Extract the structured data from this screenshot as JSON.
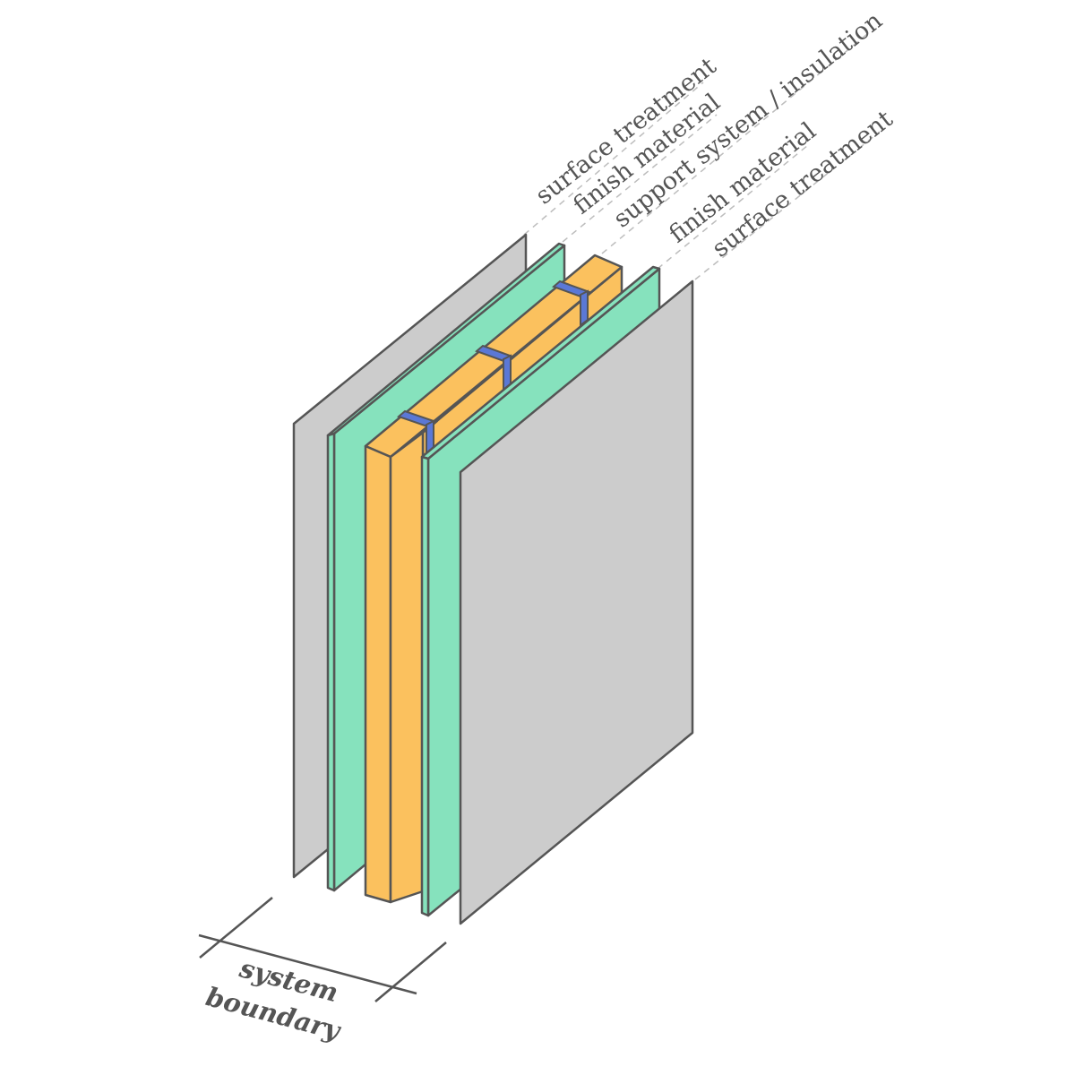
{
  "layers": [
    {
      "label": "surface treatment",
      "material": "gray",
      "color": "#cccccc"
    },
    {
      "label": "finish material",
      "material": "green",
      "color": "#86e2bd"
    },
    {
      "label": "support system / insulation",
      "material": "orange",
      "color": "#fbc15e"
    },
    {
      "label": "finish material",
      "material": "green",
      "color": "#86e2bd"
    },
    {
      "label": "surface treatment",
      "material": "gray",
      "color": "#cccccc"
    }
  ],
  "boundary": {
    "line1": "system",
    "line2": "boundary"
  },
  "colors": {
    "outline": "#555555",
    "leader": "#bdbdbd",
    "connector": "#5b78d6",
    "text": "#555555"
  }
}
